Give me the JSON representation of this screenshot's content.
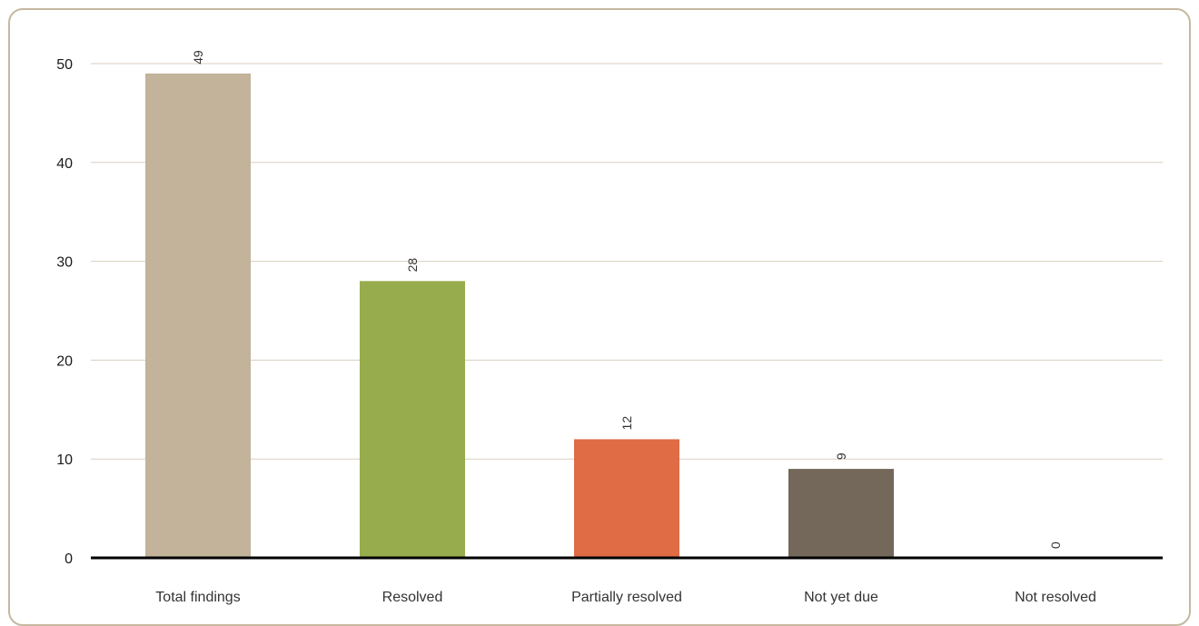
{
  "chart_data": {
    "type": "bar",
    "title": "",
    "xlabel": "",
    "ylabel": "",
    "categories": [
      "Total findings",
      "Resolved",
      "Partially resolved",
      "Not yet due",
      "Not resolved"
    ],
    "values": [
      49,
      28,
      12,
      9,
      0
    ],
    "data_labels": [
      "49",
      "28",
      "12",
      "9",
      "0"
    ],
    "bar_colors": [
      "#c2b39a",
      "#97ac4d",
      "#df6c45",
      "#736859",
      "#736859"
    ],
    "ylim": [
      0,
      50
    ],
    "yticks": [
      0,
      10,
      20,
      30,
      40,
      50
    ],
    "ytick_labels": [
      "0",
      "10",
      "20",
      "30",
      "40",
      "50"
    ],
    "grid": true,
    "gridline_color": "#d9cfbf",
    "axis_color": "#000000",
    "frame_color": "#c6b7a1",
    "data_label_orientation": "vertical",
    "legend": "none"
  }
}
